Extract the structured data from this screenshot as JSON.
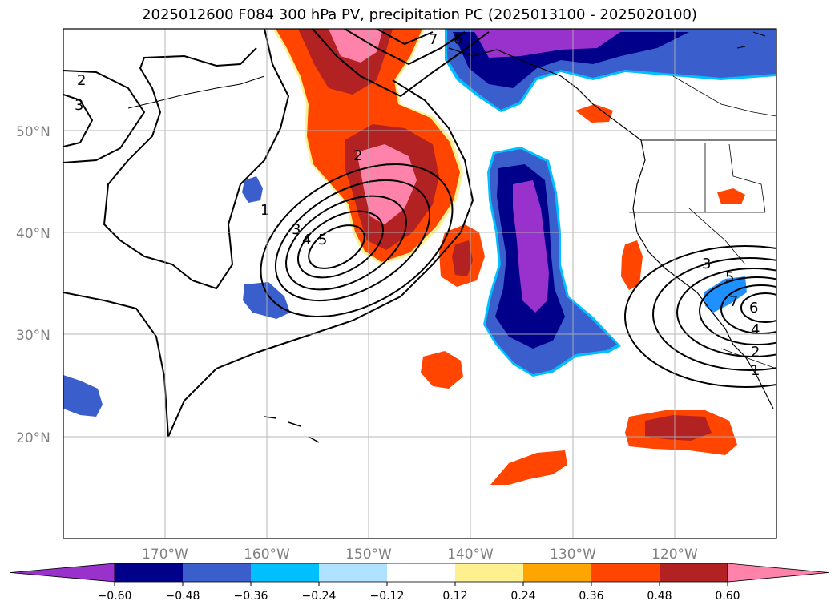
{
  "title": "2025012600 F084 300 hPa PV, precipitation PC (2025013100 - 2025020100)",
  "lat_labels": [
    "50°N",
    "40°N",
    "30°N",
    "20°N"
  ],
  "lon_labels": [
    "170°W",
    "160°W",
    "150°W",
    "140°W",
    "130°W",
    "120°W"
  ],
  "colorbar": {
    "colors": [
      "#9932cc",
      "#00008b",
      "#3a5fcd",
      "#00bfff",
      "#b0e2ff",
      "#ffffff",
      "#fff08f",
      "#ffa500",
      "#ff4500",
      "#b22222",
      "#ff82ab"
    ],
    "ticks": [
      "−0.60",
      "−0.48",
      "−0.36",
      "−0.24",
      "−0.12",
      "0.12",
      "0.24",
      "0.36",
      "0.48",
      "0.60"
    ]
  },
  "contour_labels": {
    "a": "2",
    "b": "3",
    "c": "1",
    "d": "2",
    "e": "3",
    "f": "4",
    "g": "5",
    "h": "7",
    "i": "6",
    "j": "3",
    "k": "5",
    "l": "7",
    "m": "6",
    "n": "4",
    "o": "2",
    "p": "1"
  }
}
